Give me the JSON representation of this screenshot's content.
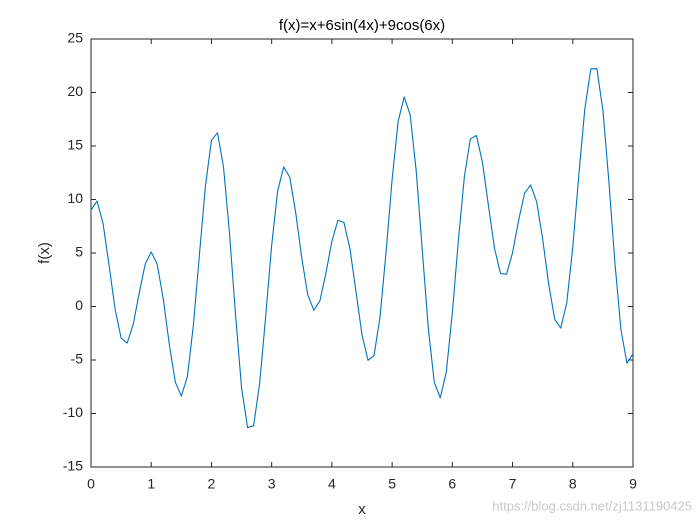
{
  "chart_data": {
    "type": "line",
    "title": "f(x)=x+6sin(4x)+9cos(6x)",
    "x_label": "x",
    "y_label": "f(x)",
    "watermark": "https://blog.csdn.net/zj1131190425",
    "color": "#0072bd",
    "xlim": [
      0,
      9
    ],
    "ylim": [
      -15,
      25
    ],
    "xticks": [
      0,
      1,
      2,
      3,
      4,
      5,
      6,
      7,
      8,
      9
    ],
    "yticks": [
      -15,
      -10,
      -5,
      0,
      5,
      10,
      15,
      20,
      25
    ],
    "x": [
      0,
      0.1,
      0.2,
      0.3,
      0.4,
      0.5,
      0.6,
      0.7,
      0.8,
      0.9,
      1,
      1.1,
      1.2,
      1.3,
      1.4,
      1.5,
      1.6,
      1.7,
      1.8,
      1.9,
      2,
      2.1,
      2.2,
      2.3,
      2.4,
      2.5,
      2.6,
      2.7,
      2.8,
      2.9,
      3,
      3.1,
      3.2,
      3.3,
      3.4,
      3.5,
      3.6,
      3.7,
      3.8,
      3.9,
      4,
      4.1,
      4.2,
      4.3,
      4.4,
      4.5,
      4.6,
      4.7,
      4.8,
      4.9,
      5,
      5.1,
      5.2,
      5.3,
      5.4,
      5.5,
      5.6,
      5.7,
      5.8,
      5.9,
      6,
      6.1,
      6.2,
      6.3,
      6.4,
      6.5,
      6.6,
      6.7,
      6.8,
      6.9,
      7,
      7.1,
      7.2,
      7.3,
      7.4,
      7.5,
      7.6,
      7.7,
      7.8,
      7.9,
      8,
      8.1,
      8.2,
      8.3,
      8.4,
      8.5,
      8.6,
      8.7,
      8.8,
      8.9,
      9
    ],
    "values": [
      9,
      9.86,
      7.77,
      3.85,
      -0.24,
      -2.95,
      -3.42,
      -1.7,
      1.24,
      3.96,
      5.1,
      3.94,
      0.7,
      -3.52,
      -7.06,
      -8.38,
      -6.56,
      -1.76,
      4.81,
      11.25,
      15.53,
      16.23,
      13.05,
      6.83,
      -0.78,
      -7.6,
      -11.32,
      -11.14,
      -7.22,
      -0.95,
      5.72,
      10.83,
      13.04,
      12.09,
      8.74,
      4.51,
      1.08,
      -0.34,
      0.52,
      3.08,
      6.09,
      8.06,
      7.85,
      5.39,
      1.4,
      -2.64,
      -5.03,
      -4.58,
      -0.94,
      5.12,
      11.87,
      17.3,
      19.58,
      17.91,
      12.68,
      5.33,
      -1.97,
      -7.08,
      -8.54,
      -6.12,
      -0.59,
      6.18,
      12.14,
      15.66,
      15.98,
      13.48,
      9.41,
      5.45,
      3.08,
      3.01,
      5.03,
      8.04,
      10.59,
      11.36,
      9.8,
      6.3,
      2.08,
      -1.2,
      -2.02,
      0.34,
      5.55,
      12.25,
      18.46,
      22.21,
      22.23,
      18.35,
      11.64,
      4.06,
      -2.18,
      -5.29,
      -4.42
    ]
  }
}
